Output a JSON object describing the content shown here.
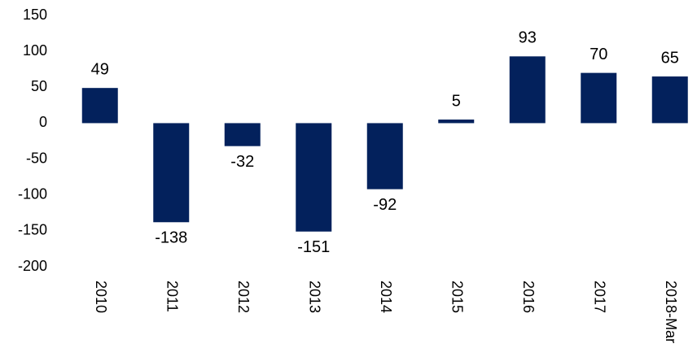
{
  "chart_data": {
    "type": "bar",
    "categories": [
      "2010",
      "2011",
      "2012",
      "2013",
      "2014",
      "2015",
      "2016",
      "2017",
      "2018-Mar"
    ],
    "values": [
      49,
      -138,
      -32,
      -151,
      -92,
      5,
      93,
      70,
      65
    ],
    "color": "#03215c",
    "ylim": [
      -200,
      150
    ],
    "yticks": [
      -200,
      -150,
      -100,
      -50,
      0,
      50,
      100,
      150
    ],
    "grid": false
  }
}
